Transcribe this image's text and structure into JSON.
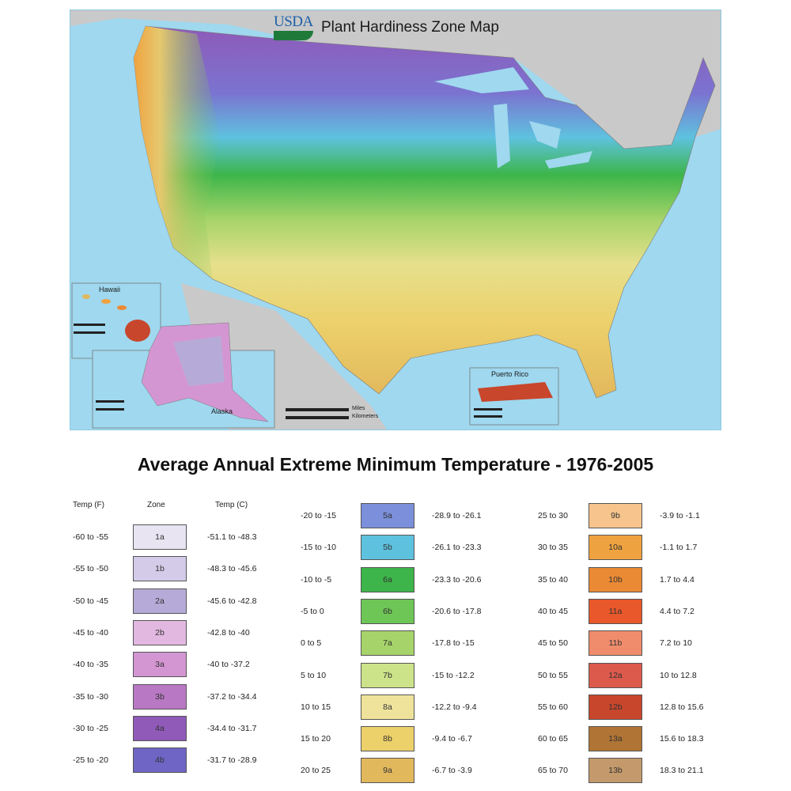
{
  "map": {
    "title": "Plant Hardiness Zone Map",
    "logo_text": "USDA",
    "insets": {
      "hawaii": "Hawaii",
      "alaska": "Alaska",
      "puerto_rico": "Puerto Rico"
    },
    "scale": {
      "miles_unit": "Miles",
      "km_unit": "Kilometers"
    },
    "colors": {
      "ocean": "#9fd8ef",
      "land_outside": "#c9c9c9"
    }
  },
  "legend": {
    "title": "Average Annual Extreme Minimum Temperature - 1976-2005",
    "headers": {
      "temp_f": "Temp (F)",
      "zone": "Zone",
      "temp_c": "Temp (C)"
    },
    "zones": [
      {
        "f": "-60 to -55",
        "zone": "1a",
        "c": "-51.1 to -48.3",
        "color": "#e9e4f2"
      },
      {
        "f": "-55 to -50",
        "zone": "1b",
        "c": "-48.3 to -45.6",
        "color": "#d3cbe8"
      },
      {
        "f": "-50 to -45",
        "zone": "2a",
        "c": "-45.6 to -42.8",
        "color": "#b6abd8"
      },
      {
        "f": "-45 to -40",
        "zone": "2b",
        "c": "-42.8 to -40",
        "color": "#e2b8e0"
      },
      {
        "f": "-40 to -35",
        "zone": "3a",
        "c": "-40 to -37.2",
        "color": "#d496d2"
      },
      {
        "f": "-35 to -30",
        "zone": "3b",
        "c": "-37.2 to -34.4",
        "color": "#b878c4"
      },
      {
        "f": "-30 to -25",
        "zone": "4a",
        "c": "-34.4 to -31.7",
        "color": "#8f5ab8"
      },
      {
        "f": "-25 to -20",
        "zone": "4b",
        "c": "-31.7 to -28.9",
        "color": "#6f65c4"
      },
      {
        "f": "-20 to -15",
        "zone": "5a",
        "c": "-28.9 to -26.1",
        "color": "#7b8fda"
      },
      {
        "f": "-15 to -10",
        "zone": "5b",
        "c": "-26.1 to -23.3",
        "color": "#5ec2df"
      },
      {
        "f": "-10 to -5",
        "zone": "6a",
        "c": "-23.3 to -20.6",
        "color": "#3db54a"
      },
      {
        "f": "-5 to 0",
        "zone": "6b",
        "c": "-20.6 to -17.8",
        "color": "#6ec656"
      },
      {
        "f": "0 to 5",
        "zone": "7a",
        "c": "-17.8 to -15",
        "color": "#a6d46a"
      },
      {
        "f": "5 to 10",
        "zone": "7b",
        "c": "-15 to -12.2",
        "color": "#cde38a"
      },
      {
        "f": "10 to 15",
        "zone": "8a",
        "c": "-12.2 to -9.4",
        "color": "#efe39c"
      },
      {
        "f": "15 to 20",
        "zone": "8b",
        "c": "-9.4 to -6.7",
        "color": "#ecd06a"
      },
      {
        "f": "20 to 25",
        "zone": "9a",
        "c": "-6.7 to -3.9",
        "color": "#e2b85c"
      },
      {
        "f": "25 to 30",
        "zone": "9b",
        "c": "-3.9 to -1.1",
        "color": "#f6c48c"
      },
      {
        "f": "30 to 35",
        "zone": "10a",
        "c": "-1.1 to 1.7",
        "color": "#efa340"
      },
      {
        "f": "35 to 40",
        "zone": "10b",
        "c": "1.7 to 4.4",
        "color": "#eb8a34"
      },
      {
        "f": "40 to 45",
        "zone": "11a",
        "c": "4.4 to 7.2",
        "color": "#e8582a"
      },
      {
        "f": "45 to 50",
        "zone": "11b",
        "c": "7.2 to 10",
        "color": "#f08c6c"
      },
      {
        "f": "50 to 55",
        "zone": "12a",
        "c": "10 to 12.8",
        "color": "#dc5a4c"
      },
      {
        "f": "55 to 60",
        "zone": "12b",
        "c": "12.8 to 15.6",
        "color": "#c8462c"
      },
      {
        "f": "60 to 65",
        "zone": "13a",
        "c": "15.6 to 18.3",
        "color": "#b07434"
      },
      {
        "f": "65 to 70",
        "zone": "13b",
        "c": "18.3 to 21.1",
        "color": "#c49a6c"
      }
    ]
  }
}
